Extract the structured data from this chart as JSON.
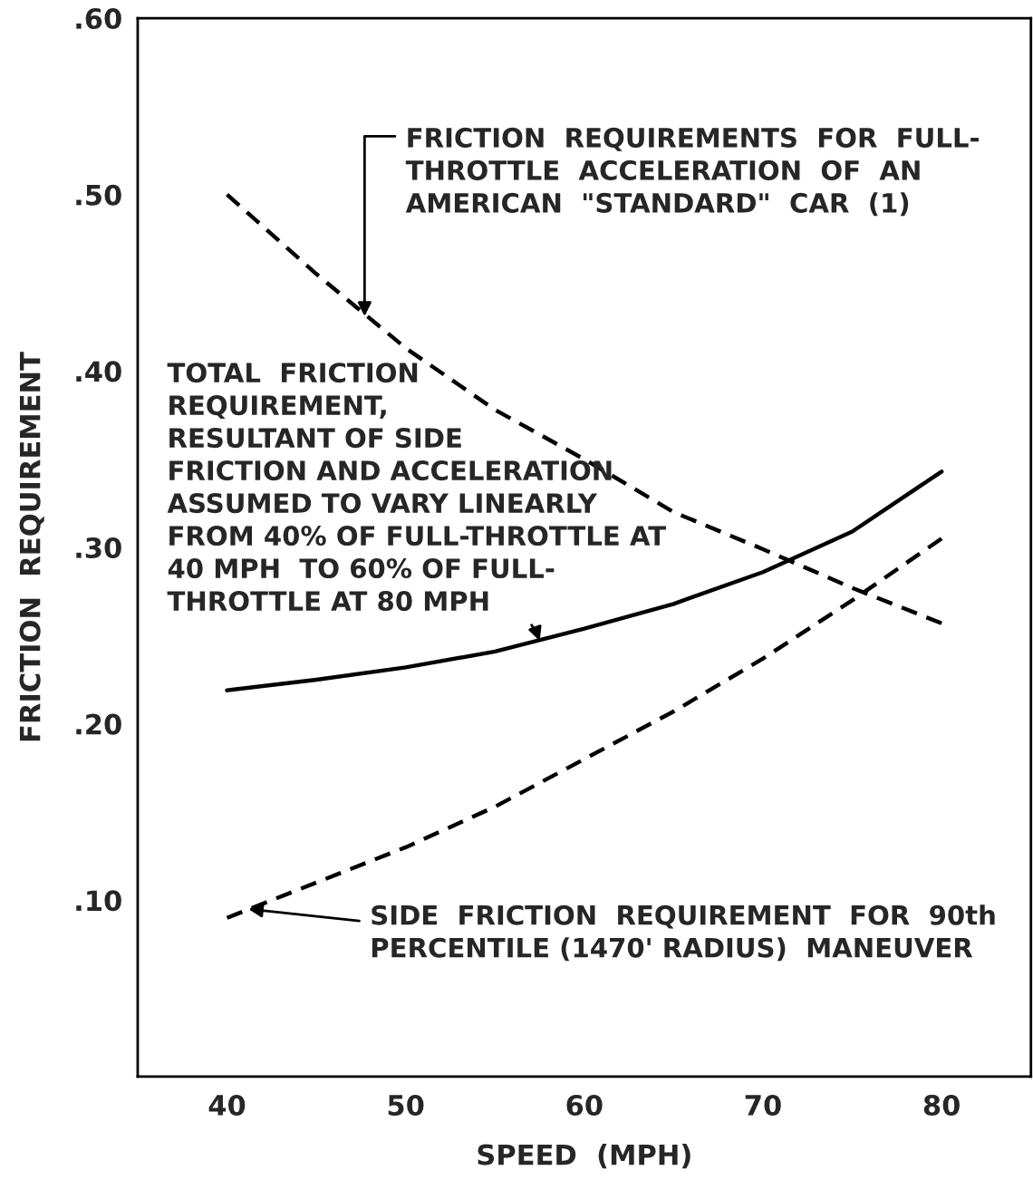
{
  "chart_data": {
    "type": "line",
    "xlabel": "SPEED  (MPH)",
    "ylabel": "FRICTION  REQUIREMENT",
    "x": [
      40,
      45,
      50,
      55,
      60,
      65,
      70,
      75,
      80
    ],
    "series": [
      {
        "color": "#000000",
        "line_style": "dashed",
        "values": [
          0.5,
          0.455,
          0.413,
          0.378,
          0.35,
          0.32,
          0.299,
          0.277,
          0.257
        ]
      },
      {
        "color": "#000000",
        "line_style": "solid",
        "values": [
          0.219,
          0.225,
          0.232,
          0.241,
          0.254,
          0.268,
          0.286,
          0.309,
          0.343
        ]
      },
      {
        "color": "#000000",
        "line_style": "dashed",
        "values": [
          0.09,
          0.11,
          0.13,
          0.153,
          0.18,
          0.207,
          0.237,
          0.27,
          0.305
        ]
      }
    ],
    "xlim": [
      35,
      85
    ],
    "xticks": [
      40,
      50,
      60,
      70,
      80
    ],
    "ylim": [
      0,
      0.6
    ],
    "yticks": [
      {
        "value": 0.1,
        "label": ".10"
      },
      {
        "value": 0.2,
        "label": ".20"
      },
      {
        "value": 0.3,
        "label": ".30"
      },
      {
        "value": 0.4,
        "label": ".40"
      },
      {
        "value": 0.5,
        "label": ".50"
      },
      {
        "value": 0.6,
        "label": ".60"
      }
    ],
    "grid": false,
    "legend": false,
    "marker": "none",
    "annotations": [
      {
        "text": "FRICTION  REQUIREMENTS  FOR  FULL-\nTHROTTLE  ACCELERATION  OF  AN\nAMERICAN  \"STANDARD\"  CAR  (1)",
        "x": 47.7,
        "y": 0.431
      },
      {
        "text": "TOTAL  FRICTION\nREQUIREMENT,\nRESULTANT OF SIDE\nFRICTION AND ACCELERATION\nASSUMED TO VARY LINEARLY\nFROM 40% OF FULL-THROTTLE AT\n40 MPH  TO 60% OF FULL-\nTHROTTLE AT 80 MPH",
        "x": 57.5,
        "y": 0.247
      },
      {
        "text": "SIDE  FRICTION  REQUIREMENT  FOR  90th\nPERCENTILE (1470' RADIUS)  MANEUVER",
        "x": 41.2,
        "y": 0.095
      }
    ]
  }
}
